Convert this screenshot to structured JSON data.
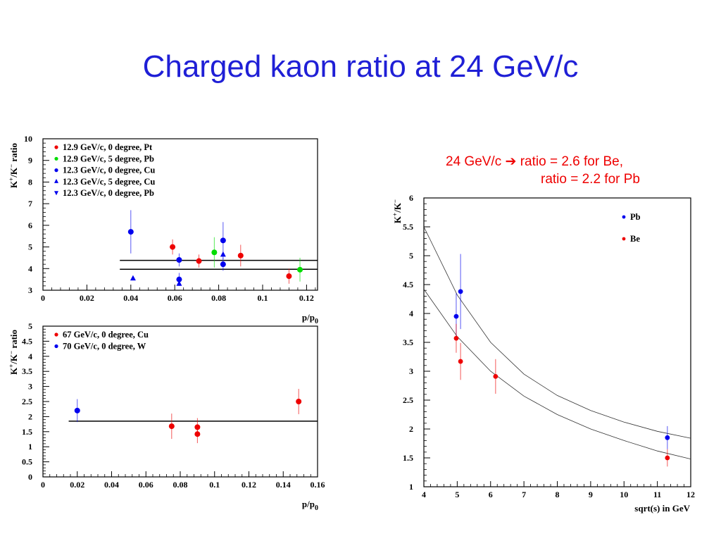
{
  "slide": {
    "title": "Charged kaon ratio at 24 GeV/c",
    "note_line1_a": "24 GeV/c",
    "note_arrow": "➔",
    "note_line1_b": "ratio = 2.6 for Be,",
    "note_line2": "ratio = 2.2 for Pb"
  },
  "chart_data": [
    {
      "type": "scatter",
      "xlabel": "p/p",
      "xlabel_sub": "0",
      "ylabel": "K+/K- ratio",
      "xlim": [
        0,
        0.125
      ],
      "ylim": [
        3,
        10
      ],
      "xticks": [
        "0",
        "0.02",
        "0.04",
        "0.06",
        "0.08",
        "0.1",
        "0.12"
      ],
      "yticks": [
        "3",
        "4",
        "5",
        "6",
        "7",
        "8",
        "9",
        "10"
      ],
      "series": [
        {
          "name": "12.9 GeV/c, 0 degree, Pt",
          "color": "#ee0000",
          "marker": "circle",
          "points": [
            {
              "x": 0.059,
              "y": 5.0,
              "err": 0.35
            },
            {
              "x": 0.071,
              "y": 4.35,
              "err": 0.3
            },
            {
              "x": 0.09,
              "y": 4.6,
              "err": 0.5
            },
            {
              "x": 0.112,
              "y": 3.65,
              "err": 0.35
            }
          ]
        },
        {
          "name": "12.9 GeV/c, 5 degree, Pb",
          "color": "#00dd00",
          "marker": "circle",
          "points": [
            {
              "x": 0.078,
              "y": 4.75,
              "err": 0.7
            },
            {
              "x": 0.117,
              "y": 3.95,
              "err": 0.55
            }
          ]
        },
        {
          "name": "12.3 GeV/c, 0 degree, Cu",
          "color": "#0000ee",
          "marker": "circle",
          "points": [
            {
              "x": 0.04,
              "y": 5.7,
              "err": 1.0
            },
            {
              "x": 0.062,
              "y": 4.4,
              "err": 0.3
            },
            {
              "x": 0.062,
              "y": 3.5,
              "err": 0.3
            },
            {
              "x": 0.082,
              "y": 5.3,
              "err": 0.85
            },
            {
              "x": 0.082,
              "y": 4.2,
              "err": 0.3
            }
          ]
        },
        {
          "name": "12.3 GeV/c, 5 degree, Cu",
          "color": "#0000ee",
          "marker": "triangle-up",
          "points": [
            {
              "x": 0.041,
              "y": 3.55,
              "err": 0
            },
            {
              "x": 0.062,
              "y": 3.3,
              "err": 0
            },
            {
              "x": 0.082,
              "y": 4.65,
              "err": 0
            }
          ]
        },
        {
          "name": "12.3 GeV/c, 0 degree, Pb",
          "color": "#0000ee",
          "marker": "triangle-down",
          "points": []
        }
      ],
      "lines": [
        {
          "x1": 0.035,
          "x2": 0.125,
          "y": 4.38
        },
        {
          "x1": 0.035,
          "x2": 0.125,
          "y": 3.97
        }
      ]
    },
    {
      "type": "scatter",
      "xlabel": "p/p",
      "xlabel_sub": "0",
      "ylabel": "K+/K- ratio",
      "xlim": [
        0,
        0.16
      ],
      "ylim": [
        0,
        5
      ],
      "xticks": [
        "0",
        "0.02",
        "0.04",
        "0.06",
        "0.08",
        "0.1",
        "0.12",
        "0.14",
        "0.16"
      ],
      "yticks": [
        "0",
        "0.5",
        "1",
        "1.5",
        "2",
        "2.5",
        "3",
        "3.5",
        "4",
        "4.5",
        "5"
      ],
      "series": [
        {
          "name": "67 GeV/c, 0 degree, Cu",
          "color": "#ee0000",
          "marker": "circle",
          "points": [
            {
              "x": 0.075,
              "y": 1.68,
              "err": 0.42
            },
            {
              "x": 0.09,
              "y": 1.65,
              "err": 0.3
            },
            {
              "x": 0.09,
              "y": 1.42,
              "err": 0.3
            },
            {
              "x": 0.149,
              "y": 2.5,
              "err": 0.42
            }
          ]
        },
        {
          "name": "70 GeV/c, 0 degree, W",
          "color": "#0000ee",
          "marker": "circle",
          "points": [
            {
              "x": 0.02,
              "y": 2.2,
              "err": 0.38
            }
          ]
        }
      ],
      "lines": [
        {
          "x1": 0.015,
          "x2": 0.16,
          "y": 1.85
        }
      ]
    },
    {
      "type": "scatter",
      "xlabel": "sqrt(s) in GeV",
      "ylabel": "K+/K-",
      "xlim": [
        4,
        12
      ],
      "ylim": [
        1,
        6
      ],
      "xticks": [
        "4",
        "5",
        "6",
        "7",
        "8",
        "9",
        "10",
        "11",
        "12"
      ],
      "yticks": [
        "1",
        "1.5",
        "2",
        "2.5",
        "3",
        "3.5",
        "4",
        "4.5",
        "5",
        "5.5",
        "6"
      ],
      "series": [
        {
          "name": "Pb",
          "color": "#0000ee",
          "marker": "circle",
          "points": [
            {
              "x": 4.97,
              "y": 3.95,
              "err": 0.4
            },
            {
              "x": 5.1,
              "y": 4.38,
              "err": 0.65
            },
            {
              "x": 11.3,
              "y": 1.85,
              "err": 0.2
            }
          ]
        },
        {
          "name": "Be",
          "color": "#ee0000",
          "marker": "circle",
          "points": [
            {
              "x": 4.97,
              "y": 3.57,
              "err": 0.25
            },
            {
              "x": 5.1,
              "y": 3.17,
              "err": 0.32
            },
            {
              "x": 6.15,
              "y": 2.91,
              "err": 0.3
            },
            {
              "x": 11.3,
              "y": 1.5,
              "err": 0.15
            }
          ]
        }
      ],
      "curves": [
        {
          "points": [
            [
              4,
              5.5
            ],
            [
              5,
              4.32
            ],
            [
              6,
              3.5
            ],
            [
              7,
              2.95
            ],
            [
              8,
              2.58
            ],
            [
              9,
              2.32
            ],
            [
              10,
              2.12
            ],
            [
              11,
              1.96
            ],
            [
              12,
              1.84
            ]
          ]
        },
        {
          "points": [
            [
              4,
              4.42
            ],
            [
              5,
              3.6
            ],
            [
              6,
              3.0
            ],
            [
              7,
              2.57
            ],
            [
              8,
              2.25
            ],
            [
              9,
              2.0
            ],
            [
              10,
              1.8
            ],
            [
              11,
              1.62
            ],
            [
              12,
              1.48
            ]
          ]
        }
      ]
    }
  ]
}
